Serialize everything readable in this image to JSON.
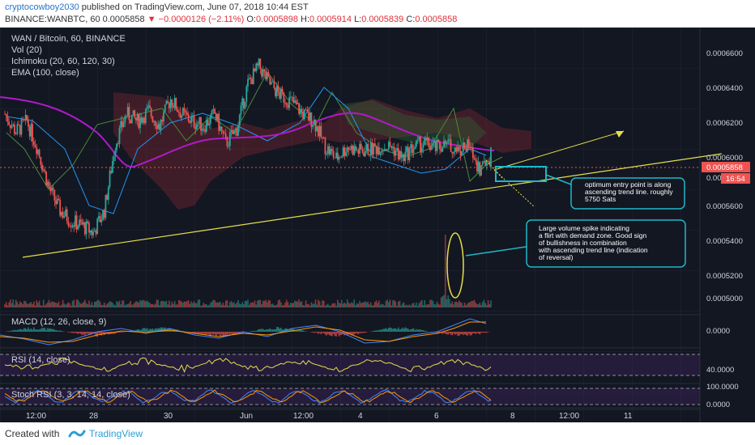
{
  "header": {
    "author": "cryptocowboy2030",
    "published": " published on TradingView.com, June 07, 2018 10:44 EST",
    "symbol": "BINANCE:WANBTC, 60",
    "last": "0.0005858",
    "change": "−0.0000126 (−2.11%)",
    "o_label": "O:",
    "o": "0.0005898",
    "h_label": "H:",
    "h": "0.0005914",
    "l_label": "L:",
    "l": "0.0005839",
    "c_label": "C:",
    "c": "0.0005858"
  },
  "legend": {
    "title": "WAN / Bitcoin, 60, BINANCE",
    "vol": "Vol (20)",
    "ichimoku": "Ichimoku (20, 60, 120, 30)",
    "ema": "EMA (100, close)"
  },
  "panes": {
    "macd": "MACD (12, 26, close, 9)",
    "rsi": "RSI (14, close)",
    "stoch": "Stoch RSI (3, 3, 14, 14, close)"
  },
  "price_axis": [
    "0.0006600",
    "0.0006400",
    "0.0006200",
    "0.0006000",
    "0.0005600",
    "0.0005400",
    "0.0005200",
    "0.0005000"
  ],
  "price_axis_partial": "0.000",
  "macd_axis": "0.0000",
  "rsi_axis": "40.0000",
  "stoch_axis": [
    "100.0000",
    "0.0000"
  ],
  "last_price_tag": "0.0005858",
  "countdown_tag": "16:54",
  "time_axis": [
    "12:00",
    "28",
    "30",
    "Jun",
    "12:00",
    "4",
    "6",
    "8",
    "12:00",
    "11"
  ],
  "annotations": {
    "entry": [
      "optimum entry point is along",
      "ascending trend line.  roughly",
      "5750 Sats"
    ],
    "volume": [
      "Large volume spike indicating",
      "a flirt with demand zone.  Good sign",
      "of bullishness in combination",
      "with ascending trend line (indication",
      "of reversal)"
    ]
  },
  "footer": {
    "created": "Created with",
    "brand": "TradingView"
  },
  "colors": {
    "background": "#131722",
    "up": "#26a69a",
    "down": "#ef5350",
    "ema": "#b019c9",
    "trend": "#e6e04a",
    "annotation": "#1fb7c9",
    "rsi": "#e6e04a",
    "macd": "#3f86ff",
    "signal": "#ff9800"
  },
  "chart_data": {
    "type": "candlestick",
    "title": "WAN / Bitcoin, 60, BINANCE",
    "ylim": [
      0.00049,
      0.000678
    ],
    "indicators": [
      "Vol (20)",
      "Ichimoku (20, 60, 120, 30)",
      "EMA (100, close)",
      "MACD (12, 26, close, 9)",
      "RSI (14, close)",
      "Stoch RSI (3, 3, 14, 14, close)"
    ],
    "price_path": [
      [
        0,
        0.00062
      ],
      [
        8,
        0.000608
      ],
      [
        16,
        0.000615
      ],
      [
        24,
        0.000596
      ],
      [
        32,
        0.00057
      ],
      [
        40,
        0.000555
      ],
      [
        48,
        0.000548
      ],
      [
        56,
        0.000545
      ],
      [
        64,
        0.00054
      ],
      [
        72,
        0.000555
      ],
      [
        80,
        0.0006
      ],
      [
        88,
        0.00062
      ],
      [
        96,
        0.000615
      ],
      [
        104,
        0.000622
      ],
      [
        112,
        0.000612
      ],
      [
        120,
        0.00063
      ],
      [
        128,
        0.00062
      ],
      [
        136,
        0.000615
      ],
      [
        144,
        0.000612
      ],
      [
        152,
        0.00062
      ],
      [
        160,
        0.0006
      ],
      [
        168,
        0.00061
      ],
      [
        176,
        0.00064
      ],
      [
        184,
        0.000652
      ],
      [
        192,
        0.00064
      ],
      [
        200,
        0.000632
      ],
      [
        208,
        0.000628
      ],
      [
        216,
        0.00062
      ],
      [
        224,
        0.000615
      ],
      [
        232,
        0.000598
      ],
      [
        240,
        0.00059
      ],
      [
        248,
        0.000598
      ],
      [
        256,
        0.000595
      ],
      [
        264,
        0.000596
      ],
      [
        272,
        0.000598
      ],
      [
        280,
        0.000598
      ],
      [
        288,
        0.00059
      ],
      [
        296,
        0.000598
      ],
      [
        304,
        0.0006
      ],
      [
        312,
        0.000597
      ],
      [
        320,
        0.000599
      ],
      [
        328,
        0.000596
      ],
      [
        336,
        0.000598
      ],
      [
        344,
        0.000583
      ],
      [
        352,
        0.000592
      ]
    ]
  }
}
